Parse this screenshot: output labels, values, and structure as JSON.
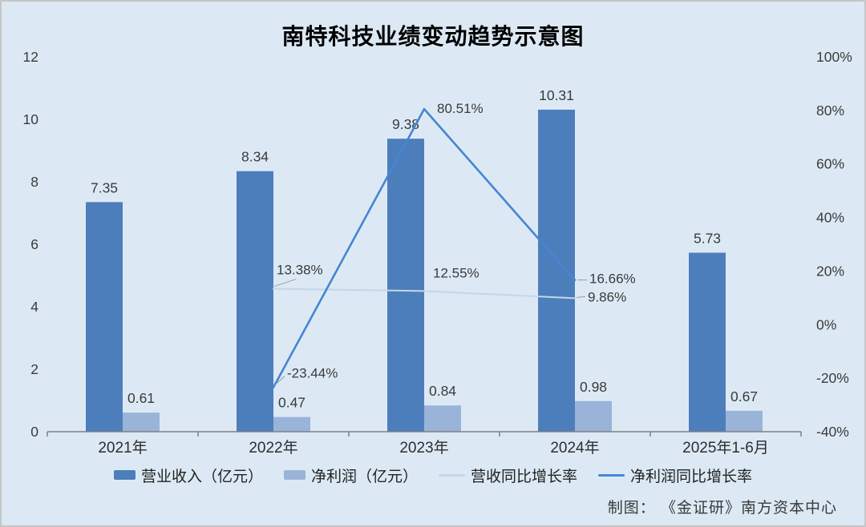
{
  "title": "南特科技业绩变动趋势示意图",
  "attribution": "制图： 《金证研》南方资本中心",
  "colors": {
    "background": "#dce9f5",
    "revenue_bar": "#4d7ebc",
    "profit_bar": "#99b4d8",
    "revenue_growth_line": "#c5d6ea",
    "profit_growth_line": "#4685d3",
    "axis": "#808080",
    "label_text": "#3a3a3a",
    "leader": "#9a9a9a"
  },
  "legend": {
    "items": [
      {
        "label": "营业收入（亿元）",
        "swatch": "bar",
        "color_key": "revenue_bar"
      },
      {
        "label": "净利润（亿元）",
        "swatch": "bar",
        "color_key": "profit_bar"
      },
      {
        "label": "营收同比增长率",
        "swatch": "line",
        "color_key": "revenue_growth_line"
      },
      {
        "label": "净利润同比增长率",
        "swatch": "line",
        "color_key": "profit_growth_line"
      }
    ]
  },
  "chart_data": {
    "type": "combo-bar-line",
    "categories": [
      "2021年",
      "2022年",
      "2023年",
      "2024年",
      "2025年1-6月"
    ],
    "bar_series": [
      {
        "name": "营业收入（亿元）",
        "axis": "left",
        "color_key": "revenue_bar",
        "values": [
          7.35,
          8.34,
          9.38,
          10.31,
          5.73
        ],
        "labels": [
          "7.35",
          "8.34",
          "9.38",
          "10.31",
          "5.73"
        ]
      },
      {
        "name": "净利润（亿元）",
        "axis": "left",
        "color_key": "profit_bar",
        "values": [
          0.61,
          0.47,
          0.84,
          0.98,
          0.67
        ],
        "labels": [
          "0.61",
          "0.47",
          "0.84",
          "0.98",
          "0.67"
        ]
      }
    ],
    "line_series": [
      {
        "name": "营收同比增长率",
        "axis": "right",
        "color_key": "revenue_growth_line",
        "points": [
          {
            "category_index": 1,
            "value": 13.38,
            "label": "13.38%"
          },
          {
            "category_index": 2,
            "value": 12.55,
            "label": "12.55%"
          },
          {
            "category_index": 3,
            "value": 9.86,
            "label": "9.86%"
          }
        ]
      },
      {
        "name": "净利润同比增长率",
        "axis": "right",
        "color_key": "profit_growth_line",
        "points": [
          {
            "category_index": 1,
            "value": -23.44,
            "label": "-23.44%"
          },
          {
            "category_index": 2,
            "value": 80.51,
            "label": "80.51%"
          },
          {
            "category_index": 3,
            "value": 16.66,
            "label": "16.66%"
          }
        ]
      }
    ],
    "left_axis": {
      "min": 0,
      "max": 12,
      "tick_values": [
        12,
        10,
        8,
        6,
        4,
        2,
        0
      ],
      "tick_labels": [
        "12",
        "10",
        "8",
        "6",
        "4",
        "2",
        "0"
      ]
    },
    "right_axis": {
      "min": -40,
      "max": 100,
      "tick_values": [
        100,
        80,
        60,
        40,
        20,
        0,
        -20,
        -40
      ],
      "tick_labels": [
        "100%",
        "80%",
        "60%",
        "40%",
        "20%",
        "0%",
        "-20%",
        "-40%"
      ]
    },
    "grid": false,
    "legend_position": "bottom"
  }
}
